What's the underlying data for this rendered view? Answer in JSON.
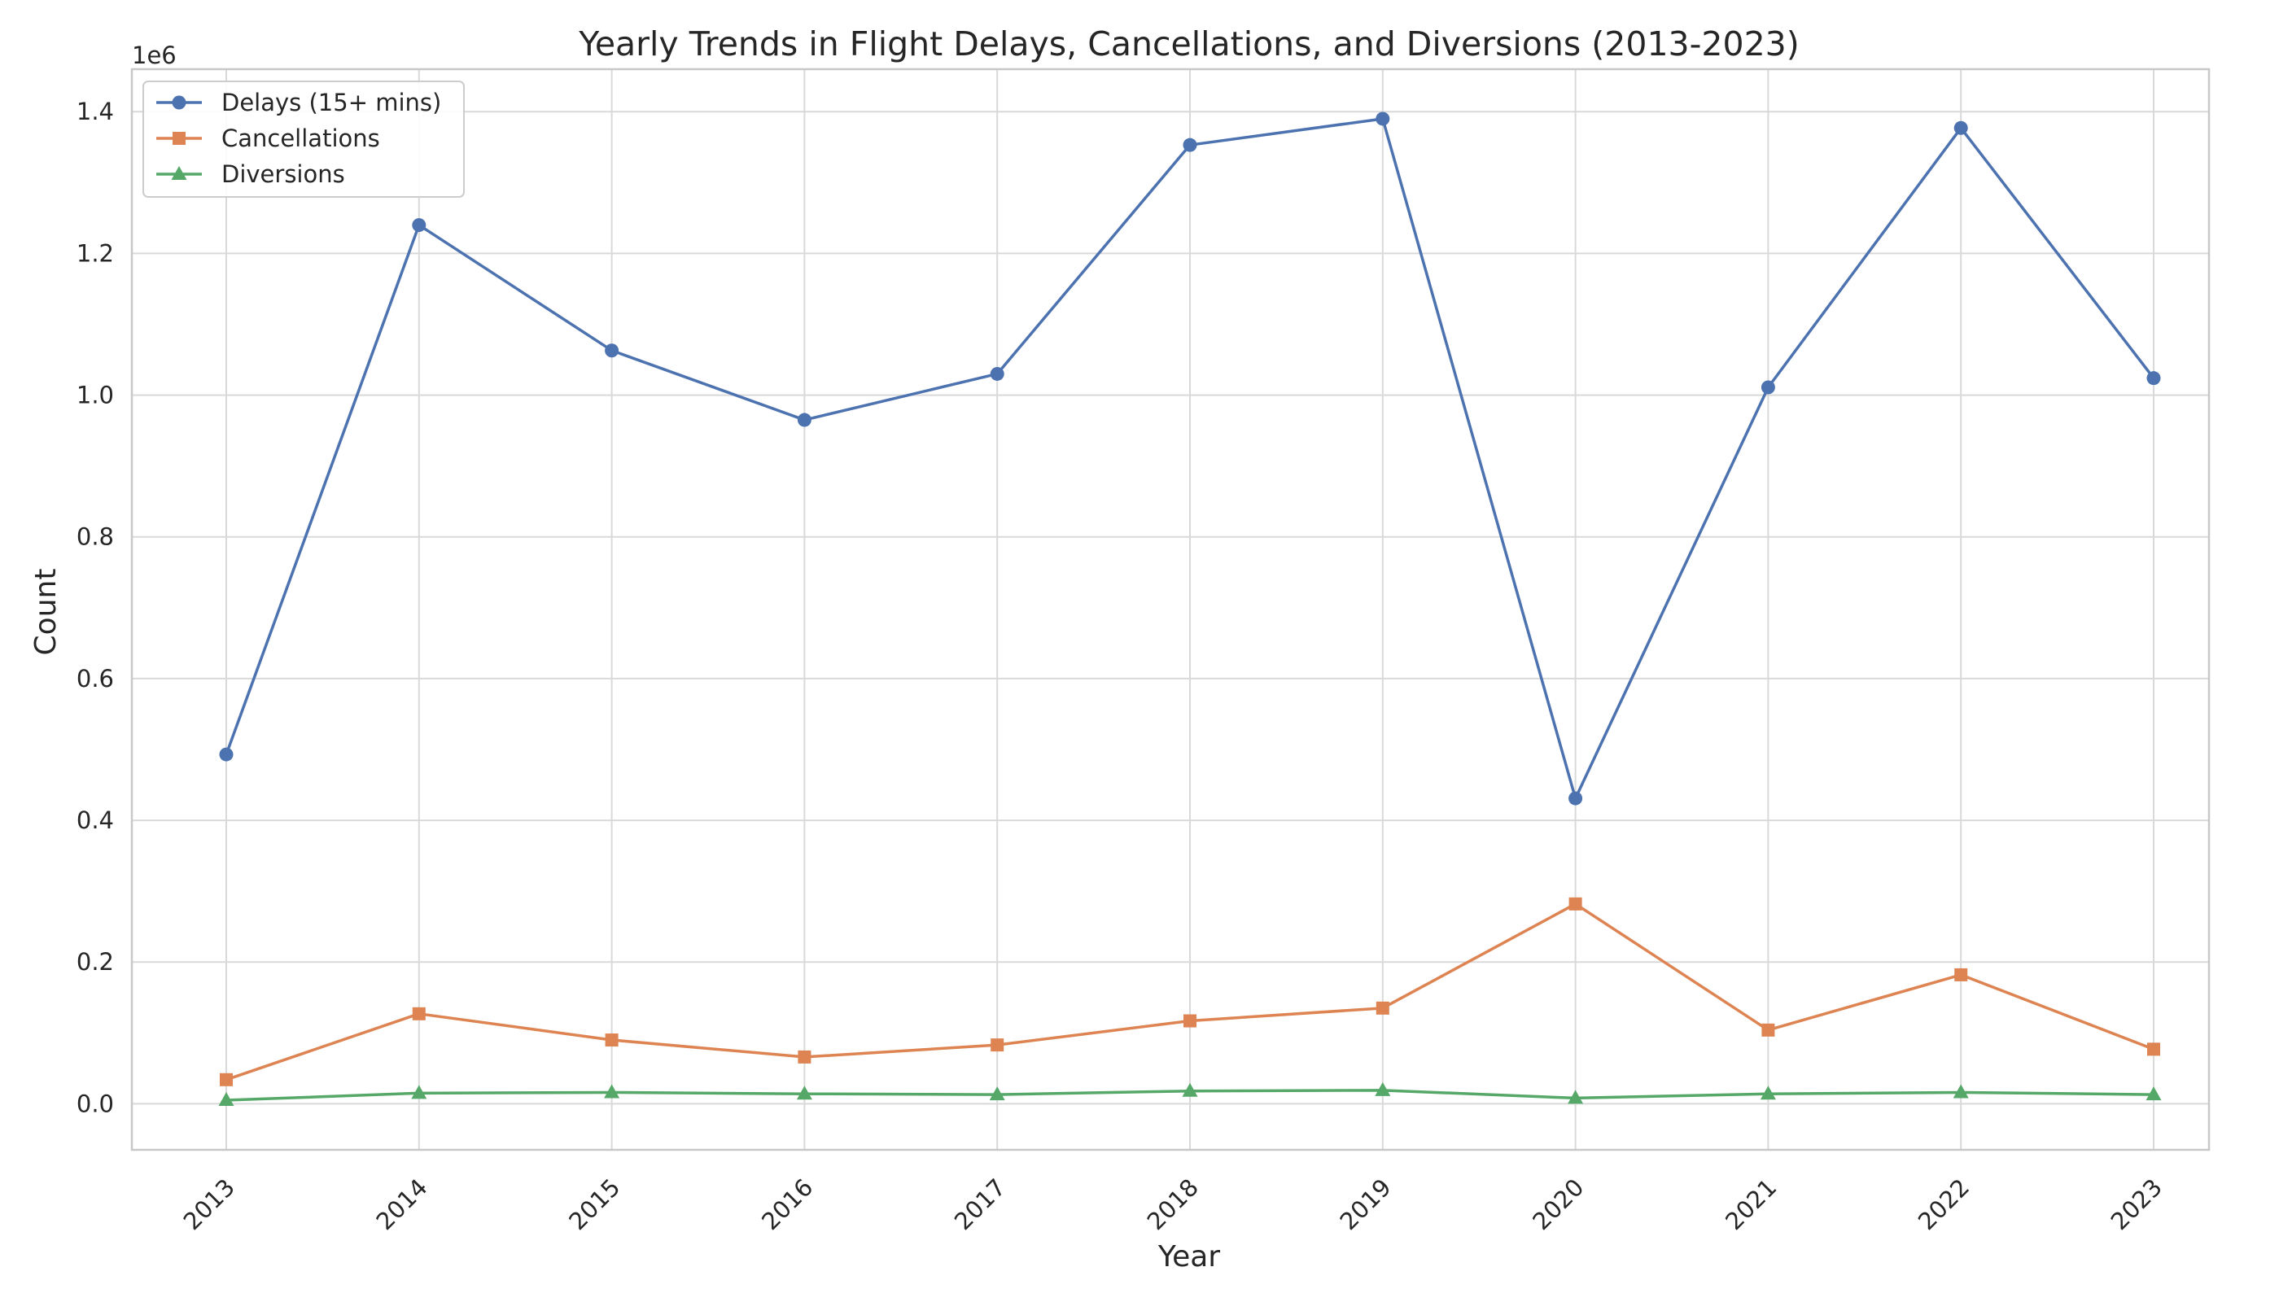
{
  "chart_data": {
    "type": "line",
    "title": "Yearly Trends in Flight Delays, Cancellations, and Diversions (2013-2023)",
    "xlabel": "Year",
    "ylabel": "Count",
    "y_offset_label": "1e6",
    "x": [
      "2013",
      "2014",
      "2015",
      "2016",
      "2017",
      "2018",
      "2019",
      "2020",
      "2021",
      "2022",
      "2023"
    ],
    "ylim": [
      -65000,
      1460000
    ],
    "yticks": [
      0,
      200000,
      400000,
      600000,
      800000,
      1000000,
      1200000,
      1400000
    ],
    "ytick_labels": [
      "0.0",
      "0.2",
      "0.4",
      "0.6",
      "0.8",
      "1.0",
      "1.2",
      "1.4"
    ],
    "grid": true,
    "legend_position": "top-left",
    "series": [
      {
        "name": "Delays (15+ mins)",
        "color": "#4c72b0",
        "marker": "circle",
        "values": [
          493000,
          1240000,
          1063000,
          965000,
          1030000,
          1353000,
          1390000,
          431000,
          1011000,
          1377000,
          1024000
        ]
      },
      {
        "name": "Cancellations",
        "color": "#dd8452",
        "marker": "square",
        "values": [
          34000,
          127000,
          90000,
          66000,
          83000,
          117000,
          135000,
          282000,
          104000,
          182000,
          77000
        ]
      },
      {
        "name": "Diversions",
        "color": "#55a868",
        "marker": "triangle",
        "values": [
          5000,
          15000,
          16000,
          14000,
          13000,
          18000,
          19000,
          8000,
          14000,
          16000,
          13000
        ]
      }
    ]
  }
}
